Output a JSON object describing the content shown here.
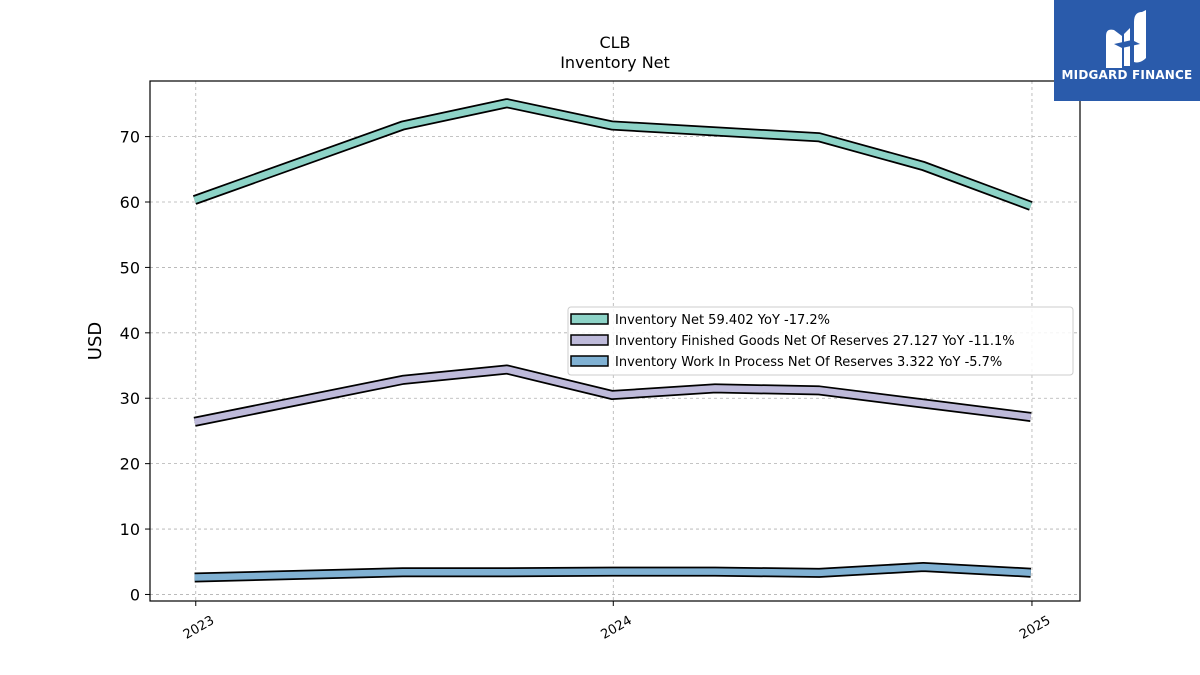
{
  "chart_data": {
    "type": "line",
    "title": "CLB",
    "subtitle": "Inventory Net",
    "xlabel": "",
    "ylabel": "USD",
    "ylim": [
      -1,
      78.5
    ],
    "xlim": [
      "2022-11-22",
      "2025-02-12"
    ],
    "x_ticks": [
      "2023",
      "2024",
      "2025"
    ],
    "y_ticks": [
      0,
      10,
      20,
      30,
      40,
      50,
      60,
      70
    ],
    "grid": true,
    "legend_position": "center-right",
    "x": [
      "2022-12-31",
      "2023-07-01",
      "2023-09-30",
      "2023-12-31",
      "2024-03-30",
      "2024-06-29",
      "2024-09-28",
      "2024-12-31"
    ],
    "series": [
      {
        "name": "Inventory Net",
        "legend_label": "Inventory Net  59.402 YoY -17.2%",
        "color": "#8dd3c7",
        "values": [
          60.3,
          71.7,
          75.1,
          71.7,
          70.8,
          69.9,
          65.5,
          59.402
        ]
      },
      {
        "name": "Inventory Finished Goods Net Of Reserves",
        "legend_label": "Inventory Finished Goods Net Of Reserves  27.127 YoY -11.1%",
        "color": "#bebada",
        "values": [
          26.4,
          32.8,
          34.4,
          30.5,
          31.5,
          31.2,
          29.2,
          27.127
        ]
      },
      {
        "name": "Inventory Work In Process Net Of Reserves",
        "legend_label": "Inventory Work In Process Net Of Reserves  3.322 YoY -5.7%",
        "color": "#80b1d3",
        "values": [
          2.6,
          3.4,
          3.4,
          3.5,
          3.5,
          3.3,
          4.2,
          3.322
        ]
      }
    ]
  },
  "logo": {
    "text": "MIDGARD FINANCE",
    "color": "#2a5bab"
  }
}
